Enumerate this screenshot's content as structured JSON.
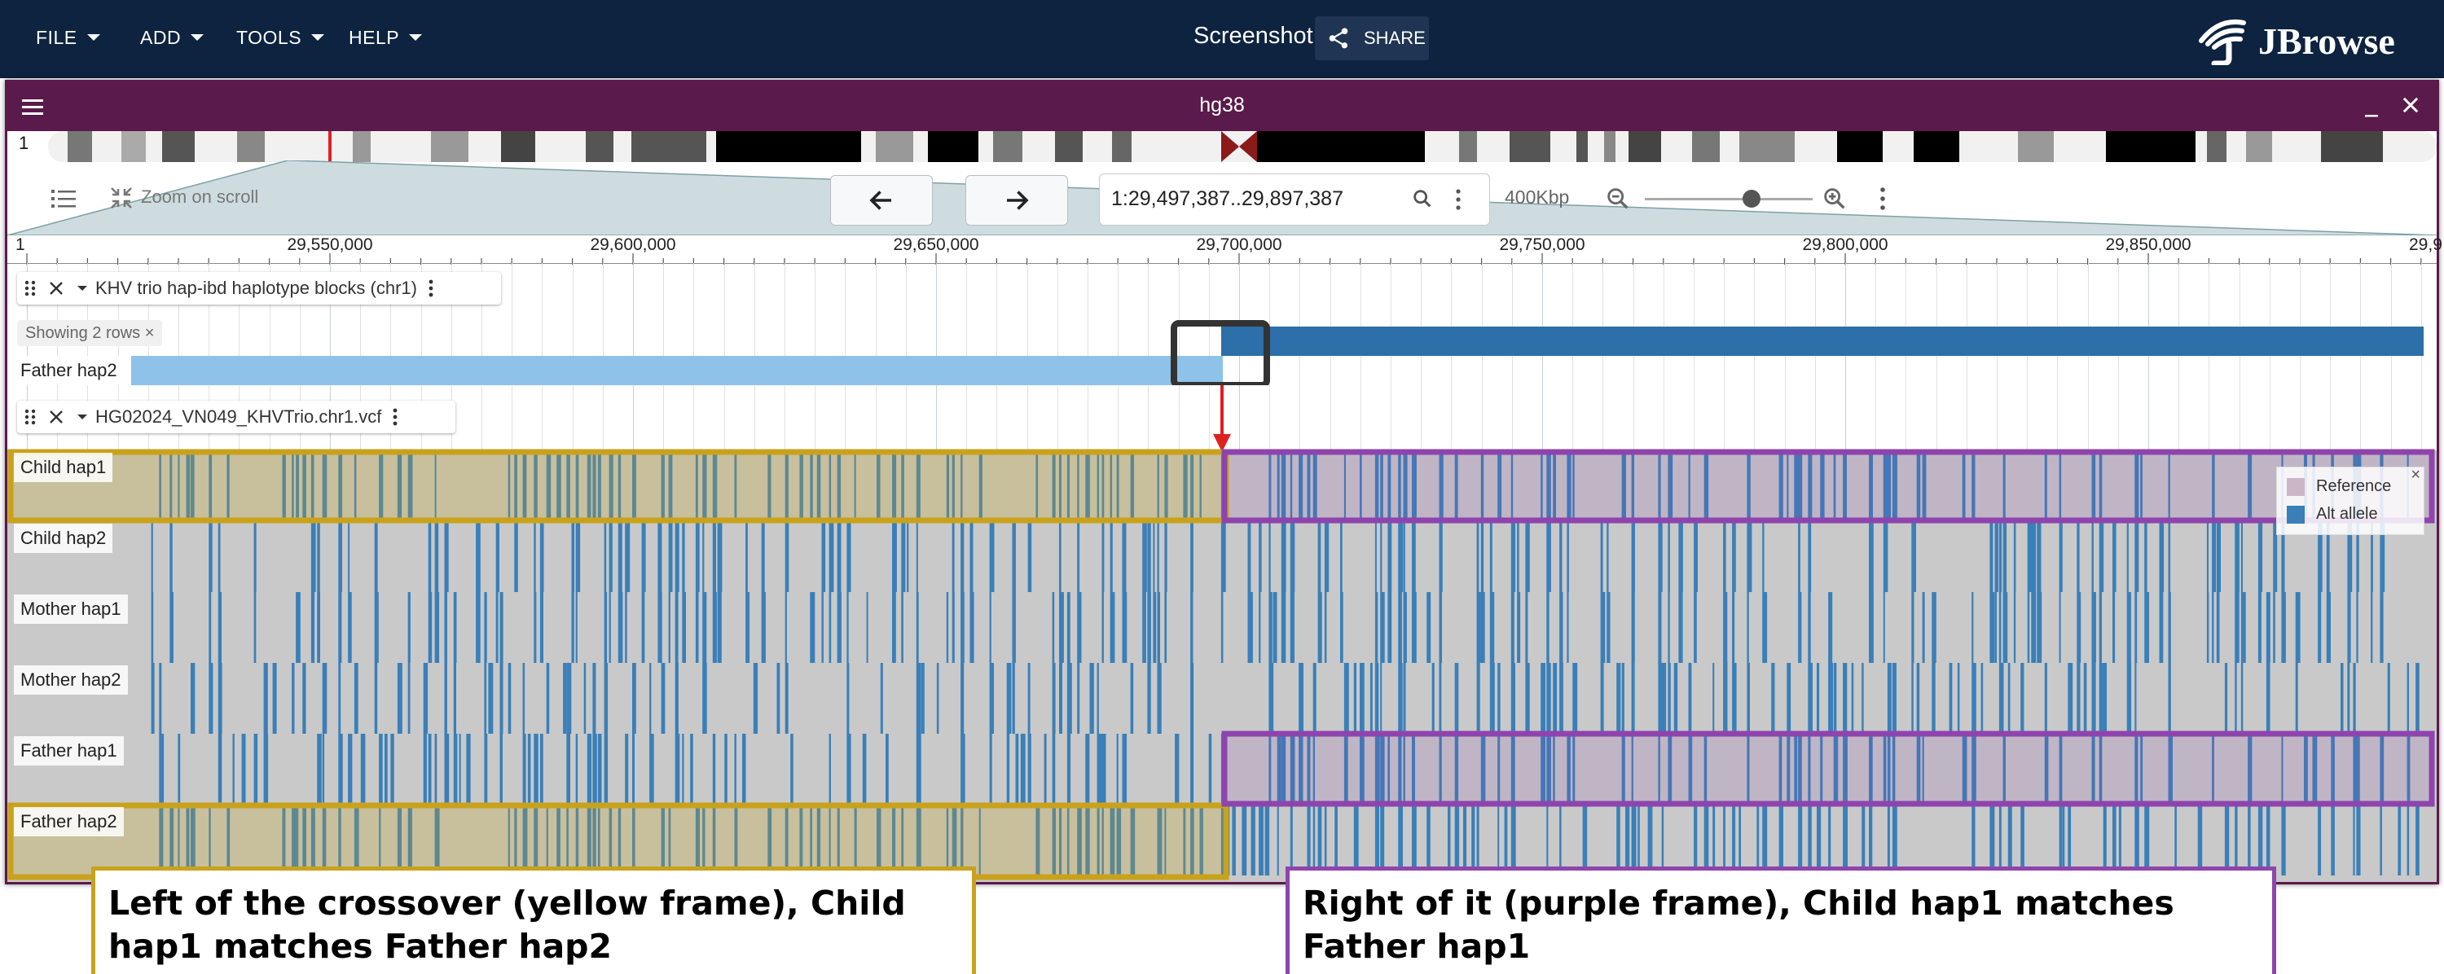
{
  "menu": [
    {
      "label": "FILE",
      "icon": "caret-down-icon"
    },
    {
      "label": "ADD",
      "icon": "caret-down-icon"
    },
    {
      "label": "TOOLS",
      "icon": "caret-down-icon"
    },
    {
      "label": "HELP",
      "icon": "caret-down-icon"
    }
  ],
  "session": {
    "name": "Screenshot",
    "share_label": "SHARE",
    "share_icon": "share-icon"
  },
  "logo": {
    "text": "JBrowse",
    "icon": "jbrowse-logo-icon"
  },
  "view": {
    "title": "hg38",
    "menu_icon": "hamburger-menu-icon",
    "minimize_icon": "minimize-icon",
    "close_icon": "close-icon",
    "chromosome": "1",
    "location": "1:29,497,387..29,897,387",
    "bp_display": "400Kbp",
    "zoom_on_scroll": "Zoom on scroll",
    "zoom_level": 0.65,
    "icons": {
      "track_selector": "track-list-icon",
      "zoom_on_scroll": "compress-arrows-icon",
      "back": "arrow-left-icon",
      "forward": "arrow-right-icon",
      "search": "search-icon",
      "locstr_menu": "more-vertical-icon",
      "zoom_out": "zoom-out-icon",
      "zoom_in": "zoom-in-icon",
      "view_menu": "more-vertical-icon"
    }
  },
  "ruler": {
    "start_label": "1",
    "ticks": [
      "29,550,000",
      "29,600,000",
      "29,650,000",
      "29,700,000",
      "29,750,000",
      "29,800,000",
      "29,850,000",
      "29,9"
    ]
  },
  "tracks": {
    "hapibd": {
      "name": "KHV trio hap-ibd haplotype blocks (chr1)",
      "showing_rows": "Showing 2 rows ×",
      "row_label": "Father hap2"
    },
    "vcf": {
      "name": "HG02024_VN049_KHVTrio.chr1.vcf",
      "rows": [
        "Child hap1",
        "Child hap2",
        "Mother hap1",
        "Mother hap2",
        "Father hap1",
        "Father hap2"
      ]
    }
  },
  "legend": {
    "close": "×",
    "items": [
      {
        "label": "Reference",
        "color": "#cbb6c8"
      },
      {
        "label": "Alt allele",
        "color": "#3a7fb8"
      }
    ]
  },
  "annotations": {
    "left": "Left of the crossover (yellow frame), Child hap1 matches Father hap2",
    "right": "Right of it (purple frame), Child hap1 matches Father hap1"
  },
  "colors": {
    "appbar": "#0d2340",
    "view_header": "#5a1a4b",
    "ref_gray": "#c9c9c9",
    "alt_blue": "#3a7fb8",
    "hap_block_light": "#8ec2e8",
    "hap_block_dark": "#2d6fa8",
    "yellow_frame": "#c9a21c",
    "purple_frame": "#8e44ad",
    "crossover_red": "#e02020"
  }
}
